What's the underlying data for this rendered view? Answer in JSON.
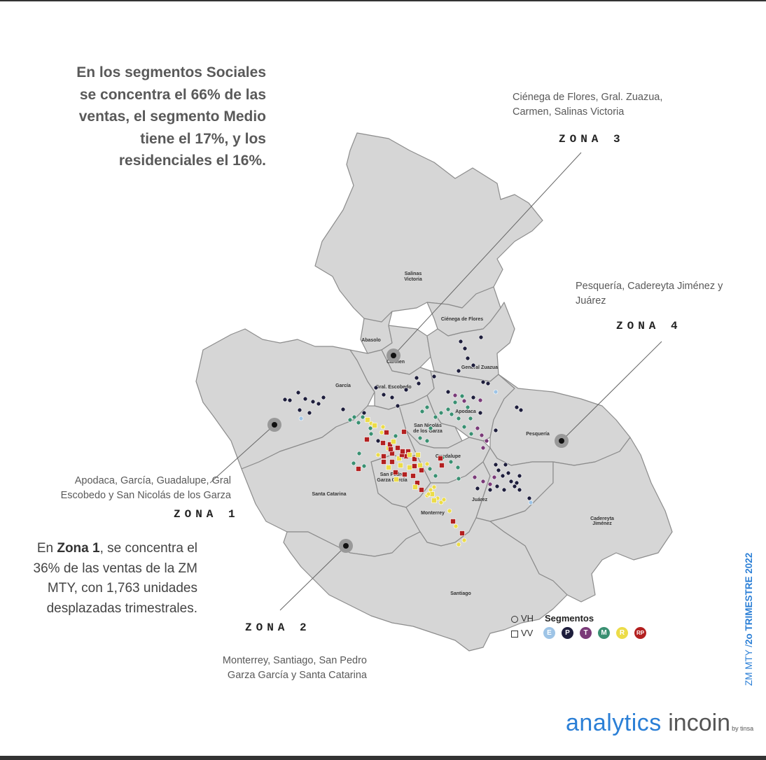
{
  "headline": [
    "En los segmentos Sociales",
    "se concentra el 66% de las",
    "ventas, el segmento Medio",
    "tiene el 17%, y los",
    "residenciales el 16%."
  ],
  "zone3_desc": [
    "Ciénega de Flores, Gral. Zuazua,",
    "Carmen, Salinas Victoria"
  ],
  "zone3_label": "ZONA 3",
  "zone4_desc": [
    "Pesquería, Cadereyta Jiménez y",
    "Juárez"
  ],
  "zone4_label": "ZONA 4",
  "zone1_desc": [
    "Apodaca, García, Guadalupe, Gral",
    "Escobedo y San Nicolás de los Garza"
  ],
  "zone1_label": "ZONA 1",
  "zone1_text": {
    "prefix": "En ",
    "bold": "Zona 1",
    "rest": ", se concentra el 36% de las ventas de la ZM MTY, con 1,763 unidades desplazadas trimestrales."
  },
  "zone2_label": "ZONA 2",
  "zone2_desc": [
    "Monterrey, Santiago, San Pedro",
    "Garza García y Santa Catarina"
  ],
  "municipalities": [
    "Salinas Victoria",
    "Ciénega de Flores",
    "Abasolo",
    "Carmen",
    "General Zuazua",
    "García",
    "Gral. Escobedo",
    "Apodaca",
    "San Nicolás de los Garza",
    "Pesquería",
    "Guadalupe",
    "San Pedro Garza García",
    "Santa Catarina",
    "Monterrey",
    "Juárez",
    "Cadereyta Jiménez",
    "Santiago"
  ],
  "legend": {
    "title": "Segmentos",
    "vh": "VH",
    "vv": "VV",
    "segments": [
      {
        "code": "E",
        "color": "#9ec4e6"
      },
      {
        "code": "P",
        "color": "#1e1e3c"
      },
      {
        "code": "T",
        "color": "#7a3a78"
      },
      {
        "code": "M",
        "color": "#3a9072"
      },
      {
        "code": "R",
        "color": "#ecdc48"
      },
      {
        "code": "RP",
        "color": "#b32020"
      }
    ]
  },
  "side_label": {
    "thin": "ZM MTY  /",
    "bold": "2o TRIMESTRE 2022"
  },
  "logo": {
    "a": "analytics",
    "b": " incoin",
    "c": "by tinsa"
  },
  "colors": {
    "map_fill": "#d6d6d6",
    "map_stroke": "#8c8c8c",
    "accent": "#2b7fd6"
  }
}
